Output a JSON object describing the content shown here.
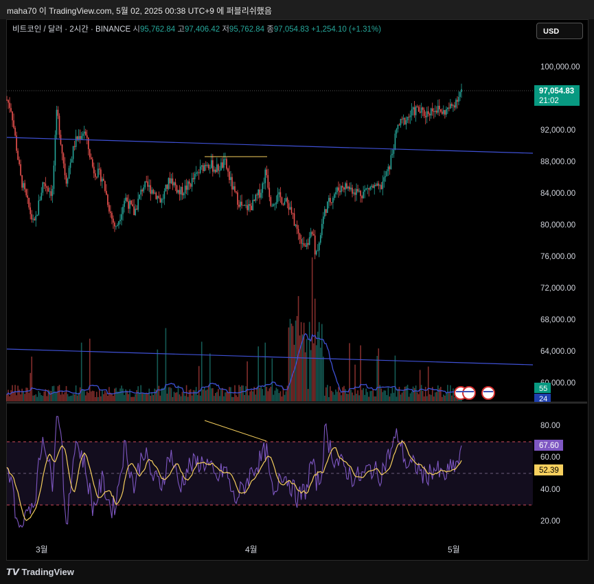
{
  "page_header": "maha70 이 TradingView.com, 5월 02, 2025 00:38 UTC+9 에 퍼블리쉬했음",
  "legend": {
    "symbol": "비트코인 / 달러 · 2시간 · BINANCE",
    "open_label": "시",
    "open": "95,762.84",
    "high_label": "고",
    "high": "97,406.42",
    "low_label": "저",
    "low": "95,762.84",
    "close_label": "종",
    "close": "97,054.83",
    "change": "+1,254.10 (+1.31%)"
  },
  "currency_button": "USD",
  "footer_logo": "TradingView",
  "colors": {
    "up": "#26a69a",
    "down": "#ef5350",
    "trendline": "#3f51d6",
    "rsi": "#7e57c2",
    "rsi_ma": "#f7d05e",
    "last_price": "#089981"
  },
  "chart_data": [
    {
      "type": "candlestick",
      "title": "",
      "y_ticks": [
        "100,000.00",
        "92,000.00",
        "88,000.00",
        "84,000.00",
        "80,000.00",
        "76,000.00",
        "72,000.00",
        "68,000.00",
        "64,000.00",
        "60,000.00"
      ],
      "x_ticks": [
        "3월",
        "4월",
        "5월"
      ],
      "ylim": [
        58000,
        103000
      ],
      "last_price": {
        "value": "97,054.83",
        "countdown": "21:02"
      },
      "volume_badges": [
        "55",
        "24"
      ],
      "price_path": [
        {
          "x": 0.0,
          "y": 95800
        },
        {
          "x": 0.01,
          "y": 94600
        },
        {
          "x": 0.03,
          "y": 86000
        },
        {
          "x": 0.06,
          "y": 79800
        },
        {
          "x": 0.08,
          "y": 85500
        },
        {
          "x": 0.1,
          "y": 84000
        },
        {
          "x": 0.11,
          "y": 94500
        },
        {
          "x": 0.13,
          "y": 85500
        },
        {
          "x": 0.15,
          "y": 90500
        },
        {
          "x": 0.17,
          "y": 92000
        },
        {
          "x": 0.19,
          "y": 87000
        },
        {
          "x": 0.21,
          "y": 86000
        },
        {
          "x": 0.23,
          "y": 81000
        },
        {
          "x": 0.24,
          "y": 79500
        },
        {
          "x": 0.26,
          "y": 83500
        },
        {
          "x": 0.28,
          "y": 81500
        },
        {
          "x": 0.3,
          "y": 85000
        },
        {
          "x": 0.32,
          "y": 84500
        },
        {
          "x": 0.34,
          "y": 83000
        },
        {
          "x": 0.36,
          "y": 86000
        },
        {
          "x": 0.38,
          "y": 84000
        },
        {
          "x": 0.4,
          "y": 85000
        },
        {
          "x": 0.42,
          "y": 86500
        },
        {
          "x": 0.44,
          "y": 88000
        },
        {
          "x": 0.46,
          "y": 87000
        },
        {
          "x": 0.48,
          "y": 87800
        },
        {
          "x": 0.5,
          "y": 84000
        },
        {
          "x": 0.52,
          "y": 82000
        },
        {
          "x": 0.54,
          "y": 82500
        },
        {
          "x": 0.56,
          "y": 84500
        },
        {
          "x": 0.57,
          "y": 87000
        },
        {
          "x": 0.58,
          "y": 83000
        },
        {
          "x": 0.6,
          "y": 83500
        },
        {
          "x": 0.62,
          "y": 82500
        },
        {
          "x": 0.64,
          "y": 79000
        },
        {
          "x": 0.66,
          "y": 77000
        },
        {
          "x": 0.67,
          "y": 80000
        },
        {
          "x": 0.68,
          "y": 76000
        },
        {
          "x": 0.7,
          "y": 82000
        },
        {
          "x": 0.72,
          "y": 84000
        },
        {
          "x": 0.74,
          "y": 85000
        },
        {
          "x": 0.76,
          "y": 84500
        },
        {
          "x": 0.78,
          "y": 84000
        },
        {
          "x": 0.8,
          "y": 84800
        },
        {
          "x": 0.82,
          "y": 84500
        },
        {
          "x": 0.84,
          "y": 87000
        },
        {
          "x": 0.86,
          "y": 92500
        },
        {
          "x": 0.88,
          "y": 93500
        },
        {
          "x": 0.9,
          "y": 94600
        },
        {
          "x": 0.92,
          "y": 94000
        },
        {
          "x": 0.94,
          "y": 94800
        },
        {
          "x": 0.96,
          "y": 94200
        },
        {
          "x": 0.98,
          "y": 95000
        },
        {
          "x": 1.0,
          "y": 97054
        }
      ]
    },
    {
      "type": "line",
      "title": "",
      "y_ticks": [
        "80.00",
        "60.00",
        "40.00",
        "20.00"
      ],
      "bands": {
        "upper": 70,
        "middle": 50,
        "lower": 30
      },
      "ylim": [
        10,
        90
      ],
      "rsi_value": "67.60",
      "rsi_ma_value": "52.39"
    }
  ]
}
